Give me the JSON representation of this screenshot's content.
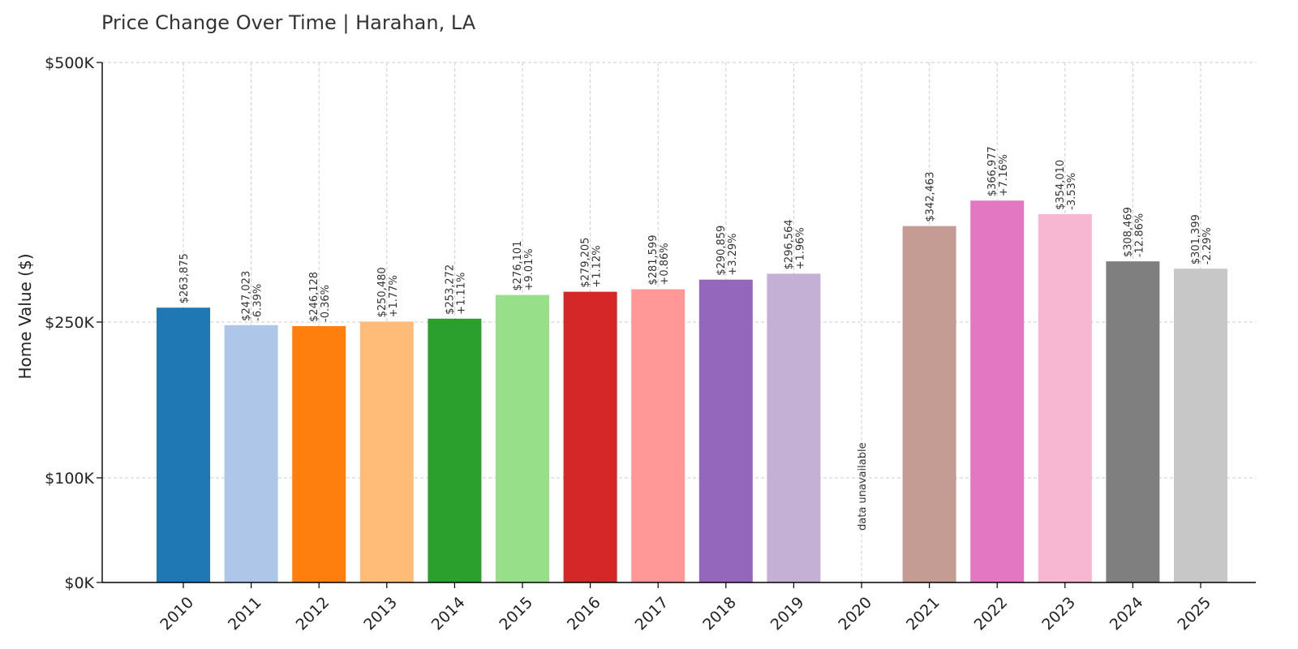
{
  "chart_data": {
    "type": "bar",
    "title": "Price Change Over Time | Harahan, LA",
    "xlabel": "",
    "ylabel": "Home Value ($)",
    "y_scale": "piecewise-linear (0–100K and 100K–500K segments)",
    "ylim": [
      0,
      500000
    ],
    "y_ticks": [
      {
        "value": 0,
        "label": "$0K"
      },
      {
        "value": 100000,
        "label": "$100K"
      },
      {
        "value": 250000,
        "label": "$250K"
      },
      {
        "value": 500000,
        "label": "$500K"
      }
    ],
    "grid": true,
    "categories": [
      "2010",
      "2011",
      "2012",
      "2013",
      "2014",
      "2015",
      "2016",
      "2017",
      "2018",
      "2019",
      "2020",
      "2021",
      "2022",
      "2023",
      "2024",
      "2025"
    ],
    "values": [
      263875,
      247023,
      246128,
      250480,
      253272,
      276101,
      279205,
      281599,
      290859,
      296564,
      null,
      342463,
      366977,
      354010,
      308469,
      301399
    ],
    "value_labels": [
      "$263,875",
      "$247,023",
      "$246,128",
      "$250,480",
      "$253,272",
      "$276,101",
      "$279,205",
      "$281,599",
      "$290,859",
      "$296,564",
      "",
      "$342,463",
      "$366,977",
      "$354,010",
      "$308,469",
      "$301,399"
    ],
    "change_labels": [
      "",
      "-6.39%",
      "-0.36%",
      "+1.77%",
      "+1.11%",
      "+9.01%",
      "+1.12%",
      "+0.86%",
      "+3.29%",
      "+1.96%",
      "",
      "",
      "+7.16%",
      "-3.53%",
      "-12.86%",
      "-2.29%"
    ],
    "missing_label": "data unavailable",
    "colors": [
      "#1f77b4",
      "#aec7e8",
      "#ff7f0e",
      "#ffbb78",
      "#2ca02c",
      "#98df8a",
      "#d62728",
      "#ff9896",
      "#9467bd",
      "#c5b0d5",
      "#8c564b",
      "#c49c94",
      "#e377c2",
      "#f7b6d2",
      "#7f7f7f",
      "#c7c7c7"
    ]
  }
}
